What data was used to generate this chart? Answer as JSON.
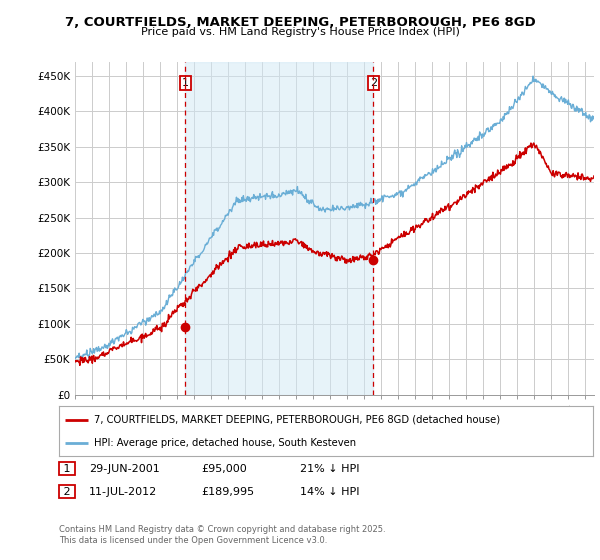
{
  "title": "7, COURTFIELDS, MARKET DEEPING, PETERBOROUGH, PE6 8GD",
  "subtitle": "Price paid vs. HM Land Registry's House Price Index (HPI)",
  "legend_line1": "7, COURTFIELDS, MARKET DEEPING, PETERBOROUGH, PE6 8GD (detached house)",
  "legend_line2": "HPI: Average price, detached house, South Kesteven",
  "footnote": "Contains HM Land Registry data © Crown copyright and database right 2025.\nThis data is licensed under the Open Government Licence v3.0.",
  "transaction1_date": "29-JUN-2001",
  "transaction1_price": "£95,000",
  "transaction1_hpi": "21% ↓ HPI",
  "transaction2_date": "11-JUL-2012",
  "transaction2_price": "£189,995",
  "transaction2_hpi": "14% ↓ HPI",
  "hpi_color": "#6aaed6",
  "hpi_fill_color": "#d0e8f5",
  "price_color": "#cc0000",
  "vline_color": "#cc0000",
  "background_color": "#ffffff",
  "grid_color": "#cccccc",
  "ylim": [
    0,
    470000
  ],
  "yticks": [
    0,
    50000,
    100000,
    150000,
    200000,
    250000,
    300000,
    350000,
    400000,
    450000
  ],
  "ytick_labels": [
    "£0",
    "£50K",
    "£100K",
    "£150K",
    "£200K",
    "£250K",
    "£300K",
    "£350K",
    "£400K",
    "£450K"
  ],
  "xlim_start": 1995.0,
  "xlim_end": 2025.5,
  "transaction1_x": 2001.49,
  "transaction1_y": 95000,
  "transaction2_x": 2012.53,
  "transaction2_y": 189995
}
